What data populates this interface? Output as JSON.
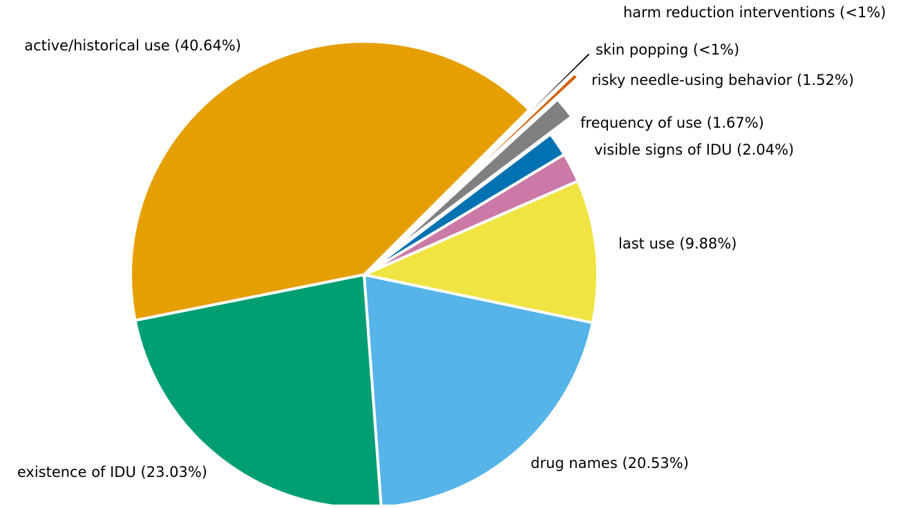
{
  "chart_data": {
    "type": "pie",
    "title": "",
    "slices": [
      {
        "label": "active/historical use (40.64%)",
        "value": 40.64,
        "color": "#E69F00"
      },
      {
        "label": "existence of IDU (23.03%)",
        "value": 23.03,
        "color": "#009E73"
      },
      {
        "label": "drug names (20.53%)",
        "value": 20.53,
        "color": "#56B4E9"
      },
      {
        "label": "last use (9.88%)",
        "value": 9.88,
        "color": "#F0E442"
      },
      {
        "label": "visible signs of IDU (2.04%)",
        "value": 2.04,
        "color": "#CC79A7"
      },
      {
        "label": "frequency of use (1.67%)",
        "value": 1.67,
        "color": "#0072B2"
      },
      {
        "label": "risky needle-using behavior (1.52%)",
        "value": 1.52,
        "color": "#808080"
      },
      {
        "label": "skin popping (<1%)",
        "value": 0.4,
        "color": "#D55E00"
      },
      {
        "label": "harm reduction interventions (<1%)",
        "value": 0.29,
        "color": "#000000"
      }
    ],
    "start_angle_deg": 45,
    "direction": "counterclockwise",
    "exploded_slices": [
      "risky needle-using behavior (1.52%)",
      "skin popping (<1%)",
      "harm reduction interventions (<1%)"
    ]
  }
}
